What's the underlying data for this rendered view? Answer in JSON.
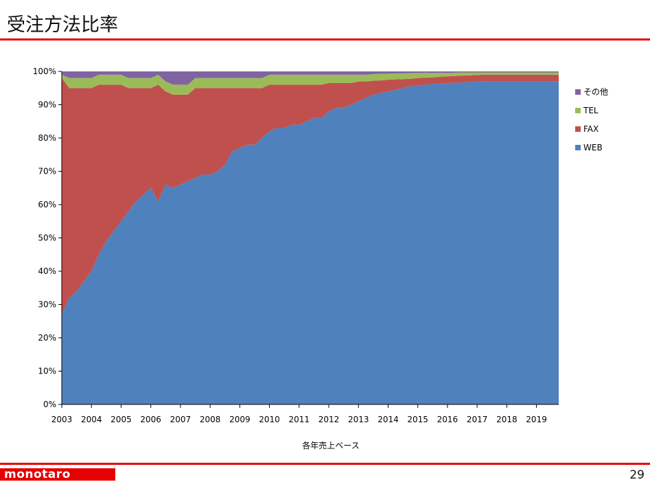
{
  "slide": {
    "title": "受注方法比率",
    "page_number": "29",
    "logo_text": "monotaro"
  },
  "chart_data": {
    "type": "area",
    "stacked": "percent",
    "xlabel": "各年売上ベース",
    "ylabel": "",
    "ylim": [
      0,
      100
    ],
    "x_ticks": [
      "2003",
      "2004",
      "2005",
      "2006",
      "2007",
      "2008",
      "2009",
      "2010",
      "2011",
      "2012",
      "2013",
      "2014",
      "2015",
      "2016",
      "2017",
      "2018",
      "2019"
    ],
    "y_ticks": [
      "0%",
      "10%",
      "20%",
      "30%",
      "40%",
      "50%",
      "60%",
      "70%",
      "80%",
      "90%",
      "100%"
    ],
    "x": [
      2003.0,
      2003.25,
      2003.5,
      2003.75,
      2004.0,
      2004.25,
      2004.5,
      2004.75,
      2005.0,
      2005.25,
      2005.5,
      2005.75,
      2006.0,
      2006.25,
      2006.5,
      2006.75,
      2007.0,
      2007.25,
      2007.5,
      2007.75,
      2008.0,
      2008.25,
      2008.5,
      2008.75,
      2009.0,
      2009.25,
      2009.5,
      2009.75,
      2010.0,
      2010.25,
      2010.5,
      2010.75,
      2011.0,
      2011.25,
      2011.5,
      2011.75,
      2012.0,
      2012.25,
      2012.5,
      2012.75,
      2013.0,
      2013.25,
      2013.5,
      2013.75,
      2014.0,
      2014.25,
      2014.5,
      2014.75,
      2015.0,
      2015.25,
      2015.5,
      2015.75,
      2016.0,
      2016.25,
      2016.5,
      2016.75,
      2017.0,
      2017.25,
      2017.5,
      2017.75,
      2018.0,
      2018.25,
      2018.5,
      2018.75,
      2019.0,
      2019.25,
      2019.5,
      2019.75
    ],
    "series": [
      {
        "name": "WEB",
        "color": "#4f81bd",
        "values": [
          27,
          32,
          34,
          37,
          40,
          45,
          49,
          52,
          55,
          58,
          61,
          63,
          65,
          61,
          66,
          65,
          66,
          67,
          68,
          69,
          69,
          70,
          72,
          76,
          77,
          78,
          78,
          80,
          82,
          83,
          83,
          84,
          84,
          85,
          86,
          86,
          88,
          89,
          89,
          90,
          91,
          92,
          93,
          93.5,
          94,
          94.5,
          95,
          95.5,
          95.8,
          96,
          96.2,
          96.4,
          96.5,
          96.6,
          96.7,
          96.8,
          96.9,
          97,
          97,
          97,
          97,
          97,
          97,
          97,
          97,
          97,
          97,
          97
        ]
      },
      {
        "name": "FAX",
        "color": "#c0504d",
        "values": [
          71,
          63,
          61,
          58,
          55,
          51,
          47,
          44,
          41,
          37,
          34,
          32,
          30,
          35,
          28,
          28,
          27,
          26,
          27,
          26,
          26,
          25,
          23,
          19,
          18,
          17,
          17,
          15,
          14,
          13,
          13,
          12,
          12,
          11,
          10,
          10,
          8.5,
          7.5,
          7.5,
          6.5,
          6,
          5,
          4.2,
          3.8,
          3.5,
          3.1,
          2.7,
          2.3,
          2.2,
          2.1,
          2,
          2,
          2,
          2,
          2,
          2,
          2,
          2,
          2,
          2,
          2,
          2,
          2,
          2,
          2,
          2,
          2,
          2
        ]
      },
      {
        "name": "TEL",
        "color": "#9bbb59",
        "values": [
          1,
          3,
          3,
          3,
          3,
          3,
          3,
          3,
          3,
          3,
          3,
          3,
          3,
          3,
          3,
          3,
          3,
          3,
          3,
          3,
          3,
          3,
          3,
          3,
          3,
          3,
          3,
          3,
          3,
          3,
          3,
          3,
          3,
          3,
          3,
          3,
          2.5,
          2.5,
          2.5,
          2.5,
          2,
          2,
          2,
          2,
          1.8,
          1.8,
          1.7,
          1.7,
          1.5,
          1.5,
          1.3,
          1.2,
          1,
          1,
          1,
          0.9,
          0.8,
          0.7,
          0.7,
          0.7,
          0.7,
          0.7,
          0.7,
          0.7,
          0.7,
          0.7,
          0.7,
          0.7
        ]
      },
      {
        "name": "その他",
        "color": "#8064a2",
        "values": [
          1,
          2,
          2,
          2,
          2,
          1,
          1,
          1,
          1,
          2,
          2,
          2,
          2,
          1,
          3,
          4,
          4,
          4,
          2,
          2,
          2,
          2,
          2,
          2,
          2,
          2,
          2,
          2,
          1,
          1,
          1,
          1,
          1,
          1,
          1,
          1,
          1,
          1,
          1,
          1,
          1,
          1,
          0.8,
          0.7,
          0.7,
          0.6,
          0.6,
          0.5,
          0.5,
          0.4,
          0.5,
          0.4,
          0.5,
          0.4,
          0.3,
          0.3,
          0.3,
          0.3,
          0.3,
          0.3,
          0.3,
          0.3,
          0.3,
          0.3,
          0.3,
          0.3,
          0.3,
          0.3
        ]
      }
    ],
    "legend_order": [
      "その他",
      "TEL",
      "FAX",
      "WEB"
    ],
    "legend_position": "right"
  }
}
